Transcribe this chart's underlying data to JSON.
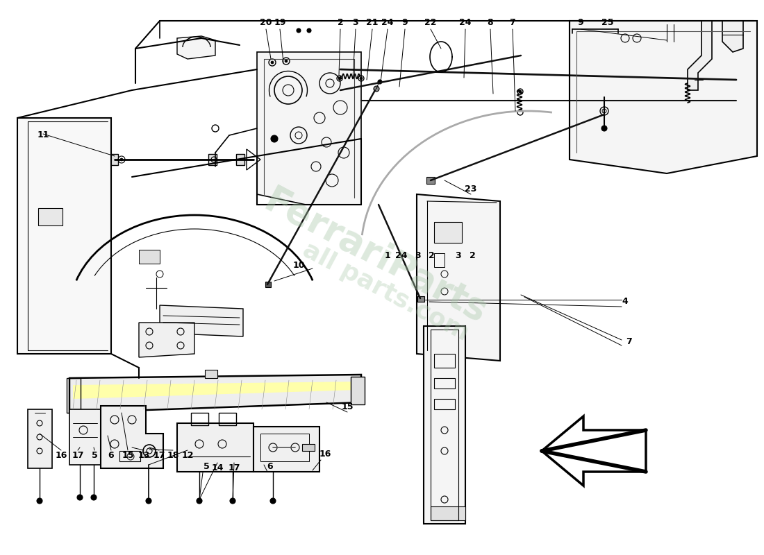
{
  "bg": "#ffffff",
  "lc": "#000000",
  "lc_light": "#888888",
  "lc_cable": "#111111",
  "watermark_color1": "#b8d4b8",
  "watermark_color2": "#c8d8a8",
  "part_labels_top": [
    [
      "20",
      383,
      32
    ],
    [
      "19",
      403,
      32
    ],
    [
      "2",
      490,
      32
    ],
    [
      "3",
      512,
      32
    ],
    [
      "21",
      536,
      32
    ],
    [
      "24",
      558,
      32
    ],
    [
      "9",
      583,
      32
    ],
    [
      "22",
      620,
      32
    ],
    [
      "24",
      670,
      32
    ],
    [
      "8",
      706,
      32
    ],
    [
      "7",
      738,
      32
    ],
    [
      "9",
      836,
      32
    ],
    [
      "25",
      872,
      32
    ]
  ],
  "part_labels_side": [
    [
      "11",
      62,
      195
    ],
    [
      "10",
      430,
      382
    ],
    [
      "1",
      558,
      368
    ],
    [
      "24",
      578,
      368
    ],
    [
      "3",
      601,
      368
    ],
    [
      "2",
      621,
      368
    ],
    [
      "3",
      660,
      368
    ],
    [
      "2",
      680,
      368
    ],
    [
      "23",
      678,
      272
    ],
    [
      "4",
      900,
      435
    ],
    [
      "7",
      905,
      492
    ]
  ],
  "part_labels_bottom": [
    [
      "15",
      500,
      586
    ],
    [
      "16",
      468,
      655
    ],
    [
      "6",
      389,
      672
    ],
    [
      "5",
      297,
      673
    ],
    [
      "16",
      88,
      657
    ],
    [
      "17",
      112,
      657
    ],
    [
      "5",
      136,
      657
    ],
    [
      "6",
      160,
      657
    ],
    [
      "15",
      184,
      657
    ],
    [
      "13",
      207,
      657
    ],
    [
      "17",
      229,
      657
    ],
    [
      "18",
      249,
      657
    ],
    [
      "12",
      270,
      657
    ],
    [
      "14",
      313,
      675
    ],
    [
      "17",
      337,
      675
    ]
  ]
}
